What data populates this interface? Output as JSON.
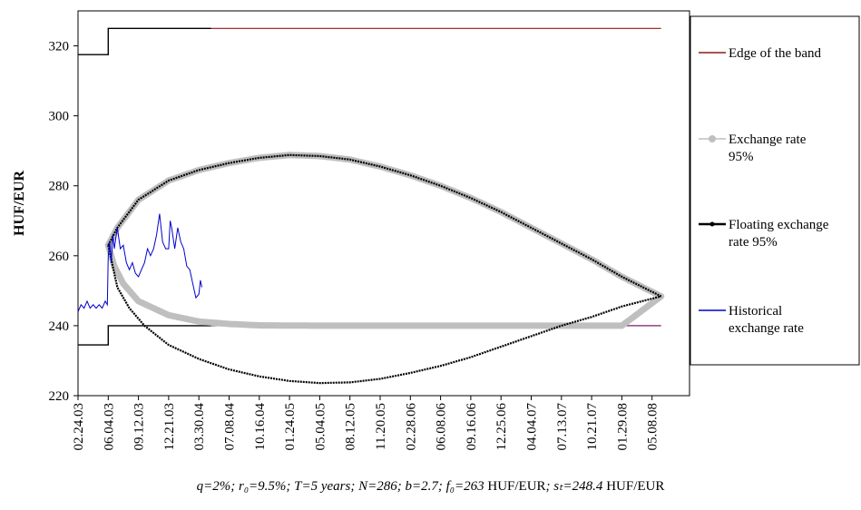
{
  "caption": {
    "params": "q=2%; r₀=9.5%; T=5 years; N=286; b=2.7; f₀=263",
    "unit1": " HUF/EUR",
    "mid": "; sₜ=248.4",
    "unit2": " HUF/EUR"
  },
  "chart_data": {
    "type": "line",
    "ylabel": "HUF/EUR",
    "xlabel": "",
    "ylim": [
      220,
      330
    ],
    "yticks": [
      220,
      240,
      260,
      280,
      300,
      320
    ],
    "x_tick_labels": [
      "02.24.03",
      "06.04.03",
      "09.12.03",
      "12.21.03",
      "03.30.04",
      "07.08.04",
      "10.16.04",
      "01.24.05",
      "05.04.05",
      "08.12.05",
      "11.20.05",
      "02.28.06",
      "06.08.06",
      "09.16.06",
      "12.25.06",
      "04.04.07",
      "07.13.07",
      "10.21.07",
      "01.29.08",
      "05.08.08"
    ],
    "legend_position": "right",
    "grid": false,
    "series": [
      {
        "name": "Edge of the band",
        "color": "#8b1a1a",
        "upper": {
          "x": [
            0,
            1,
            1,
            19.3
          ],
          "y": [
            317.5,
            317.5,
            325,
            325
          ]
        },
        "lower": {
          "x": [
            0,
            1,
            1,
            19.3
          ],
          "y": [
            234.5,
            234.5,
            240,
            240
          ]
        }
      },
      {
        "name": "Exchange rate 95%",
        "color": "#bfbfbf",
        "upper": {
          "x": [
            1,
            1.3,
            2,
            3,
            4,
            5,
            6,
            7,
            8,
            9,
            10,
            11,
            12,
            13,
            14,
            15,
            16,
            17,
            18,
            19.3
          ],
          "y": [
            263,
            268,
            276,
            281.5,
            284.5,
            286.5,
            288,
            288.8,
            288.5,
            287.5,
            285.5,
            283,
            280,
            276.5,
            272.5,
            268,
            263.5,
            259,
            254,
            248.4
          ]
        },
        "lower": {
          "x": [
            1,
            1.2,
            1.5,
            2,
            3,
            4,
            5,
            6,
            8,
            10,
            12,
            14,
            16,
            17,
            18,
            19.3
          ],
          "y": [
            263,
            257,
            252,
            247,
            243,
            241.2,
            240.5,
            240.1,
            240,
            240,
            240,
            240,
            240,
            240,
            240,
            248.4
          ]
        }
      },
      {
        "name": "Floating exchange rate 95%",
        "color": "#000000",
        "upper": {
          "x": [
            1,
            1.3,
            2,
            3,
            4,
            5,
            6,
            7,
            8,
            9,
            10,
            11,
            12,
            13,
            14,
            15,
            16,
            17,
            18,
            19.3
          ],
          "y": [
            263,
            268,
            276,
            281.5,
            284.5,
            286.5,
            288,
            288.8,
            288.5,
            287.5,
            285.5,
            283,
            280,
            276.5,
            272.5,
            268,
            263.5,
            259,
            254,
            248.4
          ]
        },
        "lower": {
          "x": [
            1,
            1.3,
            1.7,
            2.2,
            3,
            4,
            5,
            6,
            7,
            8,
            9,
            10,
            11,
            12,
            13,
            14,
            15,
            16,
            17,
            18,
            19.3
          ],
          "y": [
            263,
            251,
            245,
            240,
            234.5,
            230.5,
            227.5,
            225.5,
            224.2,
            223.6,
            223.8,
            224.8,
            226.5,
            228.5,
            231,
            234,
            237,
            240,
            242.5,
            245.5,
            248.4
          ]
        }
      },
      {
        "name": "Historical exchange rate",
        "color": "#0000cc",
        "x": [
          0,
          0.1,
          0.2,
          0.3,
          0.4,
          0.5,
          0.6,
          0.7,
          0.8,
          0.9,
          0.97,
          1.0,
          1.05,
          1.1,
          1.15,
          1.2,
          1.3,
          1.4,
          1.5,
          1.6,
          1.7,
          1.8,
          1.9,
          2.0,
          2.1,
          2.2,
          2.3,
          2.4,
          2.5,
          2.6,
          2.7,
          2.8,
          2.9,
          3.0,
          3.05,
          3.1,
          3.2,
          3.3,
          3.4,
          3.5,
          3.6,
          3.7,
          3.8,
          3.9,
          4.0,
          4.05,
          4.1
        ],
        "y": [
          244,
          246,
          245,
          247,
          245,
          246,
          245,
          246,
          245,
          247,
          246,
          260,
          264,
          258,
          266,
          262,
          268,
          262,
          263,
          258,
          256,
          258,
          255,
          254,
          256,
          258,
          262,
          260,
          262,
          266,
          272,
          264,
          262,
          262,
          270,
          268,
          262,
          268,
          264,
          262,
          257,
          256,
          252,
          248,
          249,
          253,
          251
        ]
      }
    ]
  }
}
